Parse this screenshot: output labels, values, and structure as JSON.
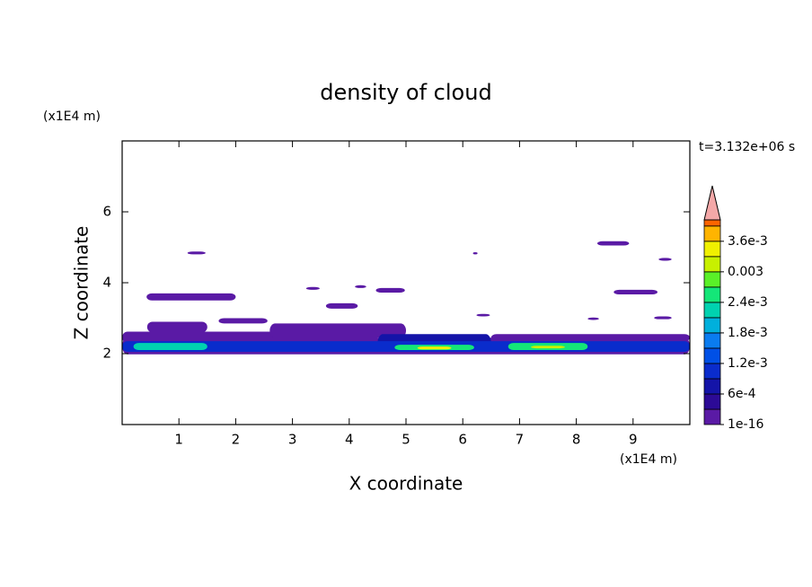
{
  "chart_data": {
    "type": "contour",
    "title": "density of cloud",
    "x_label": "X coordinate",
    "y_label": "Z coordinate",
    "x_unit": "(x1E4 m)",
    "y_unit": "(x1E4 m)",
    "annotation": "t=3.132e+06 s",
    "xlim": [
      0,
      10
    ],
    "ylim": [
      0,
      8
    ],
    "xticks": [
      1,
      2,
      3,
      4,
      5,
      6,
      7,
      8,
      9
    ],
    "yticks": [
      2,
      4,
      6
    ],
    "colorbar": {
      "levels": [
        1e-16,
        0.0003,
        0.0006,
        0.0009,
        0.0012,
        0.0015,
        0.0018,
        0.0021,
        0.0024,
        0.0027,
        0.003,
        0.0033,
        0.0036,
        0.0039
      ],
      "colors": [
        "#5a1aa5",
        "#2c0a96",
        "#1414a8",
        "#0a2ccc",
        "#0050e6",
        "#0a7cf0",
        "#00b0dc",
        "#00d2b0",
        "#14e678",
        "#5af028",
        "#c8f000",
        "#f0f000",
        "#ffb400",
        "#ff6400"
      ],
      "extend_color": "#f4a8a8",
      "clim": [
        0,
        0.00402
      ],
      "ticks": [
        {
          "value": 1e-16,
          "label": "1e-16"
        },
        {
          "value": 0.0006,
          "label": "6e-4"
        },
        {
          "value": 0.0012,
          "label": "1.2e-3"
        },
        {
          "value": 0.0018,
          "label": "1.8e-3"
        },
        {
          "value": 0.0024,
          "label": "2.4e-3"
        },
        0.003,
        {
          "value": 0.0036,
          "label": "3.6e-3"
        }
      ]
    },
    "regions": [
      {
        "x": [
          0,
          10
        ],
        "z": [
          1.98,
          2.45
        ],
        "level": 0
      },
      {
        "x": [
          0,
          4.5
        ],
        "z": [
          2.3,
          2.62
        ],
        "level": 0
      },
      {
        "x": [
          6.5,
          10
        ],
        "z": [
          2.35,
          2.55
        ],
        "level": 0
      },
      {
        "x": [
          2.6,
          5
        ],
        "z": [
          2.45,
          2.85
        ],
        "level": 0
      },
      {
        "x": [
          0.44,
          1.5
        ],
        "z": [
          2.6,
          2.9
        ],
        "level": 0
      },
      {
        "x": [
          1.7,
          2.56
        ],
        "z": [
          2.85,
          3.0
        ],
        "level": 0
      },
      {
        "x": [
          0.43,
          2.0
        ],
        "z": [
          3.5,
          3.7
        ],
        "level": 0
      },
      {
        "x": [
          1.15,
          1.47
        ],
        "z": [
          4.8,
          4.88
        ],
        "level": 0
      },
      {
        "x": [
          3.24,
          3.48
        ],
        "z": [
          3.8,
          3.88
        ],
        "level": 0
      },
      {
        "x": [
          3.59,
          4.15
        ],
        "z": [
          3.27,
          3.42
        ],
        "level": 0
      },
      {
        "x": [
          4.1,
          4.3
        ],
        "z": [
          3.85,
          3.93
        ],
        "level": 0
      },
      {
        "x": [
          4.47,
          4.98
        ],
        "z": [
          3.72,
          3.85
        ],
        "level": 0
      },
      {
        "x": [
          6.18,
          6.26
        ],
        "z": [
          4.8,
          4.86
        ],
        "level": 0
      },
      {
        "x": [
          6.24,
          6.48
        ],
        "z": [
          3.05,
          3.12
        ],
        "level": 0
      },
      {
        "x": [
          8.37,
          8.93
        ],
        "z": [
          5.05,
          5.17
        ],
        "level": 0
      },
      {
        "x": [
          8.66,
          9.43
        ],
        "z": [
          3.67,
          3.8
        ],
        "level": 0
      },
      {
        "x": [
          9.45,
          9.68
        ],
        "z": [
          4.62,
          4.7
        ],
        "level": 0
      },
      {
        "x": [
          9.37,
          9.68
        ],
        "z": [
          2.97,
          3.05
        ],
        "level": 0
      },
      {
        "x": [
          8.2,
          8.4
        ],
        "z": [
          2.95,
          3.02
        ],
        "level": 0
      },
      {
        "x": [
          4.5,
          6.5
        ],
        "z": [
          2.05,
          2.55
        ],
        "level": 2
      },
      {
        "x": [
          0,
          10
        ],
        "z": [
          2.05,
          2.35
        ],
        "level": 3
      },
      {
        "x": [
          0.2,
          1.5
        ],
        "z": [
          2.1,
          2.3
        ],
        "level": 7
      },
      {
        "x": [
          4.8,
          6.2
        ],
        "z": [
          2.1,
          2.25
        ],
        "level": 8
      },
      {
        "x": [
          5.2,
          5.8
        ],
        "z": [
          2.12,
          2.2
        ],
        "level": 11
      },
      {
        "x": [
          6.8,
          8.2
        ],
        "z": [
          2.1,
          2.3
        ],
        "level": 8
      },
      {
        "x": [
          7.2,
          7.8
        ],
        "z": [
          2.15,
          2.22
        ],
        "level": 10
      }
    ]
  }
}
